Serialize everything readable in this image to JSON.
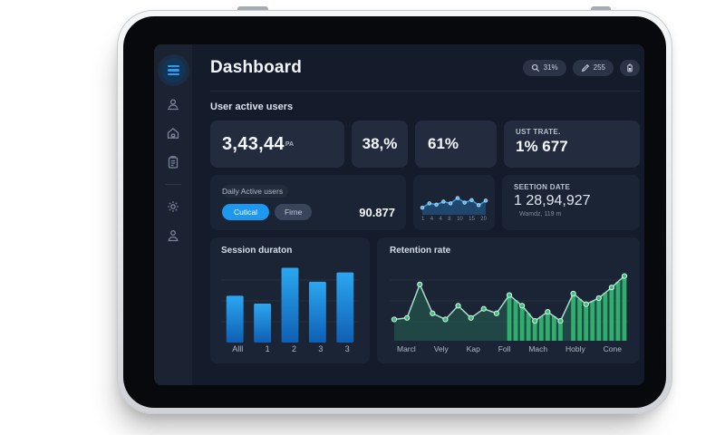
{
  "header": {
    "title": "Dashboard",
    "actions": [
      {
        "icon": "search-icon",
        "label": "31%"
      },
      {
        "icon": "pen-icon",
        "label": "255"
      },
      {
        "icon": "battery-icon",
        "label": ""
      }
    ]
  },
  "sidebar": {
    "menu": {
      "icon": "menu-icon"
    },
    "items": [
      {
        "icon": "user-monitor-icon"
      },
      {
        "icon": "home-icon"
      },
      {
        "icon": "clipboard-icon"
      },
      {
        "icon": "settings-gear-icon"
      },
      {
        "icon": "profile-icon"
      }
    ]
  },
  "section": {
    "title": "User active users"
  },
  "stats": {
    "active_users": {
      "value": "3,43,44",
      "suffix": "PA"
    },
    "pct1": "38,%",
    "pct2": "61%",
    "ust_trate": {
      "label": "UST TRATE.",
      "value": "1% 677"
    },
    "daily": {
      "label": "Daily Active users",
      "btn_primary": "Cutical",
      "btn_secondary": "Firne",
      "value": "90.877"
    },
    "seetion": {
      "label": "SEETION DATE",
      "value": "1 28,94,927",
      "sub": "Wamdz, 119 m"
    }
  },
  "colors": {
    "accent_blue": "#1e97ef",
    "spark_line": "#2f9fe8",
    "bar_top": "#2ba7f0",
    "bar_bottom": "#0f5fb4",
    "green_marker": "#34c17b",
    "green_bar": "#2fae6e"
  },
  "chart_data": [
    {
      "id": "daily-users-sparkline",
      "type": "line",
      "title": "",
      "x_ticks": [
        "1",
        "4",
        "4",
        "8",
        "10",
        "15",
        "20"
      ],
      "values": [
        28,
        45,
        40,
        52,
        45,
        66,
        48,
        58,
        38,
        56
      ],
      "ylim": [
        0,
        100
      ],
      "line_color": "#2f9fe8",
      "marker_color": "#4db3f5",
      "area_color": "rgba(40,130,205,0.38)",
      "grid": false
    },
    {
      "id": "session-duration",
      "type": "bar",
      "title": "Session duraton",
      "categories": [
        "Alll",
        "1",
        "2",
        "3",
        "3"
      ],
      "values": [
        60,
        50,
        96,
        78,
        90
      ],
      "ylim": [
        0,
        100
      ],
      "bar_color_top": "#2ba7f0",
      "bar_color_bottom": "#0f5fb4",
      "grid": true,
      "legend": "none"
    },
    {
      "id": "retention-rate",
      "type": "line",
      "title": "Retention rate",
      "categories": [
        "Marcl",
        "Vely",
        "Kap",
        "Foll",
        "Mach",
        "Hobly",
        "Cone"
      ],
      "values": [
        28,
        30,
        74,
        36,
        28,
        46,
        30,
        42,
        36,
        60,
        46,
        26,
        38,
        26,
        62,
        48,
        56,
        70,
        85
      ],
      "ylim": [
        0,
        100
      ],
      "line_color": "#a8ddc8",
      "marker_color": "#34c17b",
      "marker_ring": "#dff5ea",
      "area_color": "rgba(46,160,115,0.28)",
      "bar_color": "#2fae6e",
      "highlight_bar_ranges": [
        [
          9,
          13
        ],
        [
          14,
          18
        ]
      ],
      "grid": true,
      "legend": "none"
    }
  ]
}
